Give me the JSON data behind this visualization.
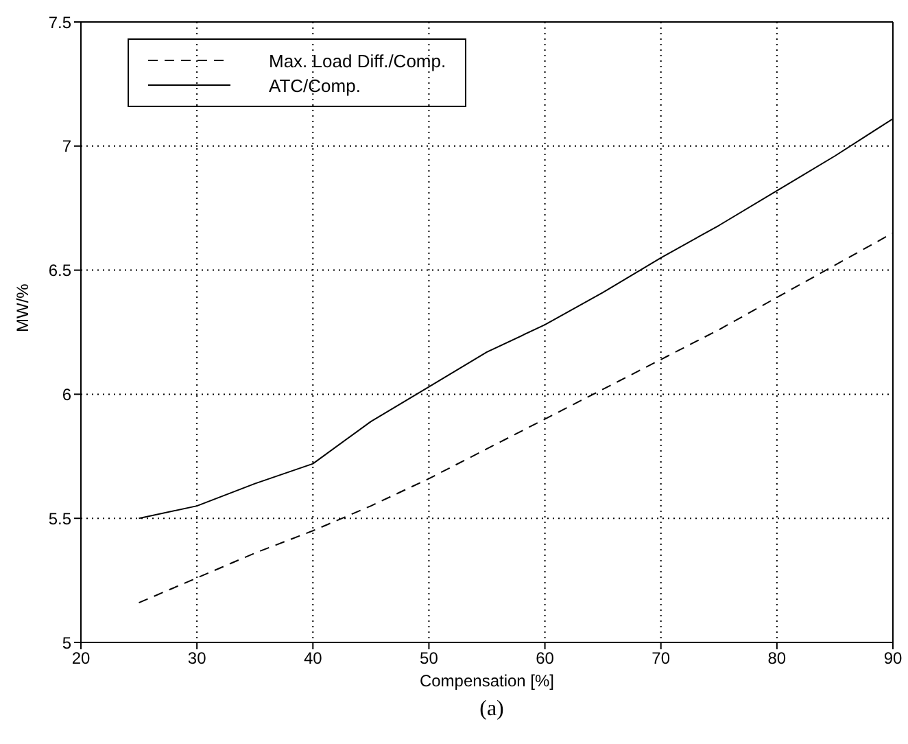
{
  "chart_data": {
    "type": "line",
    "xlabel": "Compensation [%]",
    "ylabel": "MW/%",
    "x": [
      25,
      30,
      35,
      40,
      45,
      50,
      55,
      60,
      65,
      70,
      75,
      80,
      85,
      90
    ],
    "series": [
      {
        "name": "Max. Load Diff./Comp.",
        "color": "#000000",
        "line_style": "dashed",
        "values": [
          5.16,
          5.26,
          5.36,
          5.45,
          5.55,
          5.66,
          5.78,
          5.9,
          6.02,
          6.14,
          6.26,
          6.39,
          6.52,
          6.65
        ]
      },
      {
        "name": "ATC/Comp.",
        "color": "#000000",
        "line_style": "solid",
        "values": [
          5.5,
          5.55,
          5.64,
          5.72,
          5.89,
          6.03,
          6.17,
          6.28,
          6.41,
          6.55,
          6.68,
          6.82,
          6.96,
          7.11
        ]
      }
    ],
    "xlim": [
      20,
      90
    ],
    "xticks": [
      20,
      30,
      40,
      50,
      60,
      70,
      80,
      90
    ],
    "ylim": [
      5,
      7.5
    ],
    "yticks": [
      5,
      5.5,
      6,
      6.5,
      7,
      7.5
    ],
    "grid": true,
    "legend": "top left",
    "marker": "none",
    "annotations": [
      "(a)"
    ]
  }
}
